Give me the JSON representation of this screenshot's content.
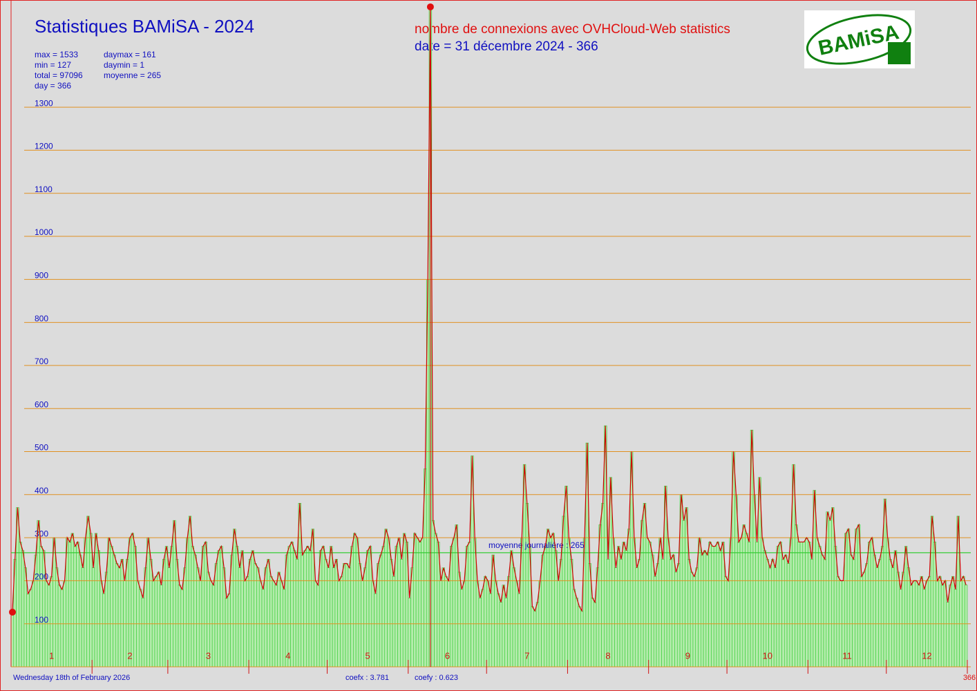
{
  "chart_data": {
    "type": "bar",
    "title": "Statistiques BAMiSA - 2024",
    "subtitle": "nombre de connexions avec OVHCloud-Web statistics",
    "date_line": "date = 31 décembre 2024 - 366",
    "logo_text": "BAMiSA",
    "stats_left": [
      "max = 1533",
      "min = 127",
      "total = 97096",
      "day = 366"
    ],
    "stats_right": [
      "daymax = 161",
      "daymin = 1",
      "moyenne = 265"
    ],
    "footer_date": "Wednesday 18th of February 2026",
    "coefx": "coefx : 3.781",
    "coefy": "coefy : 0.623",
    "months": [
      "1",
      "2",
      "3",
      "4",
      "5",
      "6",
      "7",
      "8",
      "9",
      "10",
      "11",
      "12"
    ],
    "x_end_label": "366",
    "mean": 265,
    "mean_label": "moyenne journalière : 265",
    "series": [
      {
        "name": "connexions",
        "color": "#d00000",
        "bar_color": "#33cc33",
        "values": [
          127,
          250,
          370,
          290,
          270,
          230,
          170,
          180,
          200,
          260,
          340,
          280,
          270,
          200,
          190,
          210,
          300,
          230,
          190,
          180,
          200,
          300,
          290,
          310,
          280,
          290,
          260,
          230,
          300,
          350,
          310,
          230,
          310,
          270,
          200,
          170,
          220,
          300,
          280,
          260,
          240,
          230,
          250,
          200,
          250,
          300,
          310,
          280,
          200,
          180,
          160,
          230,
          300,
          250,
          200,
          210,
          220,
          190,
          250,
          280,
          230,
          280,
          340,
          250,
          190,
          180,
          230,
          300,
          350,
          280,
          260,
          230,
          200,
          280,
          290,
          220,
          200,
          190,
          240,
          270,
          280,
          230,
          160,
          170,
          260,
          320,
          280,
          230,
          270,
          200,
          210,
          250,
          270,
          240,
          230,
          200,
          180,
          230,
          250,
          210,
          200,
          190,
          220,
          200,
          180,
          260,
          280,
          290,
          270,
          250,
          380,
          260,
          270,
          280,
          270,
          320,
          200,
          190,
          270,
          280,
          250,
          230,
          280,
          230,
          250,
          200,
          210,
          240,
          240,
          230,
          280,
          310,
          300,
          240,
          200,
          230,
          270,
          280,
          200,
          170,
          240,
          260,
          280,
          320,
          300,
          250,
          210,
          280,
          300,
          250,
          310,
          290,
          160,
          230,
          310,
          300,
          290,
          300,
          460,
          900,
          1533,
          340,
          310,
          290,
          200,
          230,
          210,
          200,
          280,
          300,
          330,
          220,
          180,
          200,
          280,
          290,
          490,
          300,
          200,
          160,
          180,
          210,
          200,
          170,
          260,
          200,
          170,
          150,
          190,
          160,
          210,
          270,
          230,
          200,
          170,
          300,
          470,
          380,
          280,
          140,
          130,
          150,
          200,
          260,
          280,
          320,
          300,
          310,
          270,
          200,
          250,
          350,
          420,
          300,
          250,
          180,
          160,
          140,
          130,
          300,
          520,
          240,
          160,
          150,
          230,
          330,
          380,
          560,
          250,
          440,
          300,
          230,
          280,
          250,
          290,
          270,
          320,
          500,
          300,
          230,
          250,
          340,
          380,
          300,
          290,
          260,
          210,
          240,
          300,
          250,
          420,
          300,
          250,
          260,
          220,
          240,
          400,
          340,
          370,
          250,
          220,
          210,
          230,
          300,
          260,
          270,
          260,
          290,
          280,
          280,
          290,
          270,
          290,
          210,
          200,
          300,
          500,
          400,
          290,
          300,
          330,
          310,
          290,
          550,
          400,
          290,
          440,
          300,
          270,
          250,
          230,
          250,
          230,
          280,
          290,
          250,
          260,
          240,
          300,
          470,
          330,
          290,
          290,
          290,
          300,
          290,
          250,
          410,
          300,
          280,
          260,
          250,
          360,
          340,
          370,
          280,
          210,
          200,
          200,
          310,
          320,
          260,
          250,
          320,
          330,
          210,
          220,
          240,
          290,
          300,
          260,
          230,
          250,
          280,
          390,
          300,
          250,
          230,
          270,
          220,
          180,
          220,
          280,
          230,
          190,
          200,
          200,
          190,
          210,
          180,
          200,
          210,
          350,
          290,
          200,
          210,
          190,
          200,
          150,
          190,
          210,
          180,
          350,
          200,
          210,
          190
        ]
      }
    ],
    "ylim": [
      0,
      1549
    ],
    "yticks": [
      100,
      200,
      300,
      400,
      500,
      600,
      700,
      800,
      900,
      1000,
      1100,
      1200,
      1300
    ],
    "grid": true
  }
}
